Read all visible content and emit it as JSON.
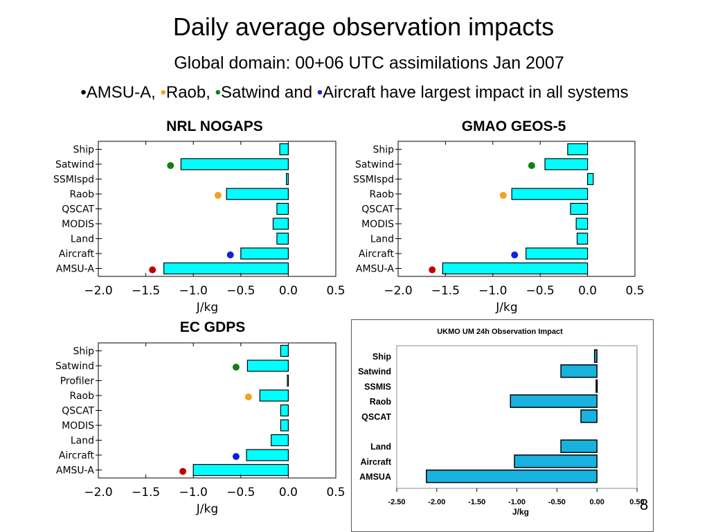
{
  "title": "Daily average observation impacts",
  "subtitle": "Global domain: 00+06 UTC assimilations  Jan 2007",
  "highlight": {
    "dot1": "•",
    "t1": "AMSU-A, ",
    "dot2": "•",
    "t2": "Raob, ",
    "dot3": "•",
    "t3": "Satwind and ",
    "dot4": "•",
    "t4": "Aircraft have largest impact in all systems"
  },
  "colors": {
    "bar": "#00ffff",
    "ukmo_bar": "#18b2e0",
    "amsua_dot": "#c00000",
    "raob_dot": "#f5a020",
    "satwind_dot": "#108010",
    "aircraft_dot": "#1020e0"
  },
  "page_number": "8",
  "chart_data": [
    {
      "type": "bar",
      "orientation": "horizontal",
      "title": "NRL NOGAPS",
      "xlabel": "J/kg",
      "categories": [
        "Ship",
        "Satwind",
        "SSMIspd",
        "Raob",
        "QSCAT",
        "MODIS",
        "Land",
        "Aircraft",
        "AMSU-A"
      ],
      "values": [
        -0.09,
        -1.13,
        -0.02,
        -0.65,
        -0.12,
        -0.16,
        -0.12,
        -0.5,
        -1.31
      ],
      "markers": [
        {
          "category": "Satwind",
          "value": -1.24,
          "color": "#108010"
        },
        {
          "category": "Raob",
          "value": -0.74,
          "color": "#f5a020"
        },
        {
          "category": "Aircraft",
          "value": -0.61,
          "color": "#1020e0"
        },
        {
          "category": "AMSU-A",
          "value": -1.43,
          "color": "#c00000"
        }
      ],
      "xlim": [
        -2.0,
        0.5
      ],
      "xticks": [
        "−2.0",
        "−1.5",
        "−1.0",
        "−0.5",
        "0.0",
        "0.5"
      ]
    },
    {
      "type": "bar",
      "orientation": "horizontal",
      "title": "GMAO GEOS-5",
      "xlabel": "J/kg",
      "categories": [
        "Ship",
        "Satwind",
        "SSMIspd",
        "Raob",
        "QSCAT",
        "MODIS",
        "Land",
        "Aircraft",
        "AMSU-A"
      ],
      "values": [
        -0.21,
        -0.45,
        0.06,
        -0.8,
        -0.18,
        -0.12,
        -0.11,
        -0.65,
        -1.53
      ],
      "markers": [
        {
          "category": "Satwind",
          "value": -0.59,
          "color": "#108010"
        },
        {
          "category": "Raob",
          "value": -0.89,
          "color": "#f5a020"
        },
        {
          "category": "Aircraft",
          "value": -0.77,
          "color": "#1020e0"
        },
        {
          "category": "AMSU-A",
          "value": -1.64,
          "color": "#c00000"
        }
      ],
      "xlim": [
        -2.0,
        0.5
      ],
      "xticks": [
        "−2.0",
        "−1.5",
        "−1.0",
        "−0.5",
        "0.0",
        "0.5"
      ]
    },
    {
      "type": "bar",
      "orientation": "horizontal",
      "title": "EC GDPS",
      "xlabel": "J/kg",
      "categories": [
        "Ship",
        "Satwind",
        "Profiler",
        "Raob",
        "QSCAT",
        "MODIS",
        "Land",
        "Aircraft",
        "AMSU-A"
      ],
      "values": [
        -0.08,
        -0.43,
        -0.01,
        -0.3,
        -0.08,
        -0.08,
        -0.18,
        -0.44,
        -1.0
      ],
      "markers": [
        {
          "category": "Satwind",
          "value": -0.55,
          "color": "#108010"
        },
        {
          "category": "Raob",
          "value": -0.42,
          "color": "#f5a020"
        },
        {
          "category": "Aircraft",
          "value": -0.55,
          "color": "#1020e0"
        },
        {
          "category": "AMSU-A",
          "value": -1.11,
          "color": "#c00000"
        }
      ],
      "xlim": [
        -2.0,
        0.5
      ],
      "xticks": [
        "−2.0",
        "−1.5",
        "−1.0",
        "−0.5",
        "0.0",
        "0.5"
      ]
    },
    {
      "type": "bar",
      "orientation": "horizontal",
      "title": "UKMO UM   24h Observation Impact",
      "xlabel": "J/kg",
      "categories": [
        "Ship",
        "Satwind",
        "SSMIS",
        "Raob",
        "QSCAT",
        "",
        "Land",
        "Aircraft",
        "AMSUA"
      ],
      "values": [
        -0.03,
        -0.45,
        -0.01,
        -1.08,
        -0.2,
        null,
        -0.45,
        -1.03,
        -2.13
      ],
      "xlim": [
        -2.5,
        0.5
      ],
      "xticks": [
        "-2.50",
        "-2.00",
        "-1.50",
        "-1.00",
        "-0.50",
        "0.00",
        "0.50"
      ]
    }
  ]
}
